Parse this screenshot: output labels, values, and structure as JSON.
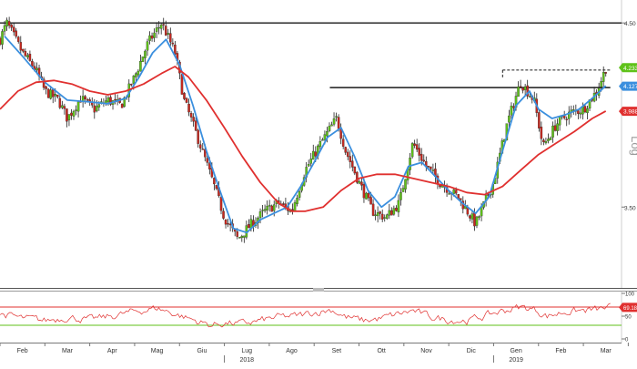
{
  "chart_data": {
    "type": "candlestick",
    "y_axis": {
      "scale": "log",
      "scale_label": "Log",
      "ticks": [
        4.5,
        3.5
      ],
      "tick_labels": [
        "4.50",
        "3.50"
      ],
      "ylim": [
        3.15,
        4.62
      ]
    },
    "x_axis": {
      "ticks": [
        "Feb",
        "Mar",
        "Apr",
        "Mag",
        "Giu",
        "Lug",
        "Ago",
        "Set",
        "Ott",
        "Nov",
        "Dic",
        "Gen",
        "Feb",
        "Mar"
      ],
      "year_labels": [
        "2018",
        "2019"
      ]
    },
    "x_range": [
      0,
      13.85
    ],
    "price_labels": [
      {
        "text": "4.2333",
        "value": 4.2333,
        "color": "#5fc21a"
      },
      {
        "text": "4.1276",
        "value": 4.1276,
        "color": "#3b8fde"
      },
      {
        "text": "3.9886",
        "value": 3.9886,
        "color": "#e0302f"
      }
    ],
    "levels": [
      {
        "value": 4.5,
        "from": 0.0,
        "to": 13.85,
        "style": "solid"
      },
      {
        "value": 4.12,
        "from": 7.35,
        "to": 13.6,
        "style": "solid"
      },
      {
        "value": 4.22,
        "from": 11.2,
        "to": 13.6,
        "style": "dashed"
      }
    ],
    "price_keypoints": [
      [
        0.0,
        4.4
      ],
      [
        0.15,
        4.5
      ],
      [
        0.5,
        4.32
      ],
      [
        0.8,
        4.22
      ],
      [
        1.0,
        4.1
      ],
      [
        1.3,
        4.05
      ],
      [
        1.5,
        3.95
      ],
      [
        1.8,
        4.06
      ],
      [
        2.1,
        4.0
      ],
      [
        2.4,
        4.05
      ],
      [
        2.7,
        4.02
      ],
      [
        3.0,
        4.18
      ],
      [
        3.3,
        4.38
      ],
      [
        3.6,
        4.5
      ],
      [
        3.9,
        4.32
      ],
      [
        4.1,
        4.05
      ],
      [
        4.4,
        3.85
      ],
      [
        4.7,
        3.65
      ],
      [
        5.0,
        3.45
      ],
      [
        5.3,
        3.35
      ],
      [
        5.6,
        3.42
      ],
      [
        5.9,
        3.48
      ],
      [
        6.2,
        3.52
      ],
      [
        6.5,
        3.48
      ],
      [
        6.8,
        3.68
      ],
      [
        7.1,
        3.8
      ],
      [
        7.5,
        3.95
      ],
      [
        7.7,
        3.78
      ],
      [
        8.0,
        3.62
      ],
      [
        8.3,
        3.48
      ],
      [
        8.6,
        3.45
      ],
      [
        8.9,
        3.52
      ],
      [
        9.2,
        3.82
      ],
      [
        9.5,
        3.7
      ],
      [
        9.8,
        3.62
      ],
      [
        10.2,
        3.55
      ],
      [
        10.6,
        3.42
      ],
      [
        11.0,
        3.62
      ],
      [
        11.3,
        3.92
      ],
      [
        11.6,
        4.15
      ],
      [
        11.9,
        4.05
      ],
      [
        12.1,
        3.8
      ],
      [
        12.4,
        3.92
      ],
      [
        12.7,
        3.98
      ],
      [
        13.0,
        4.0
      ],
      [
        13.3,
        4.1
      ],
      [
        13.5,
        4.23
      ]
    ],
    "series": [
      {
        "name": "MA fast",
        "color": "#3b8fde",
        "points": [
          [
            0.1,
            4.42
          ],
          [
            0.5,
            4.3
          ],
          [
            1.0,
            4.15
          ],
          [
            1.5,
            4.05
          ],
          [
            2.0,
            4.04
          ],
          [
            2.4,
            4.03
          ],
          [
            2.8,
            4.06
          ],
          [
            3.1,
            4.18
          ],
          [
            3.4,
            4.32
          ],
          [
            3.7,
            4.4
          ],
          [
            4.0,
            4.25
          ],
          [
            4.3,
            4.02
          ],
          [
            4.6,
            3.78
          ],
          [
            4.9,
            3.58
          ],
          [
            5.2,
            3.4
          ],
          [
            5.5,
            3.38
          ],
          [
            5.8,
            3.44
          ],
          [
            6.1,
            3.47
          ],
          [
            6.4,
            3.5
          ],
          [
            6.7,
            3.6
          ],
          [
            7.0,
            3.72
          ],
          [
            7.3,
            3.85
          ],
          [
            7.6,
            3.9
          ],
          [
            7.9,
            3.75
          ],
          [
            8.2,
            3.58
          ],
          [
            8.5,
            3.5
          ],
          [
            8.8,
            3.55
          ],
          [
            9.1,
            3.7
          ],
          [
            9.4,
            3.72
          ],
          [
            9.7,
            3.65
          ],
          [
            10.0,
            3.58
          ],
          [
            10.3,
            3.52
          ],
          [
            10.6,
            3.47
          ],
          [
            10.9,
            3.55
          ],
          [
            11.2,
            3.78
          ],
          [
            11.5,
            4.02
          ],
          [
            11.8,
            4.1
          ],
          [
            12.0,
            4.0
          ],
          [
            12.3,
            3.95
          ],
          [
            12.6,
            3.97
          ],
          [
            12.9,
            4.0
          ],
          [
            13.2,
            4.06
          ],
          [
            13.5,
            4.13
          ]
        ]
      },
      {
        "name": "MA slow",
        "color": "#e0302f",
        "points": [
          [
            0.0,
            4.0
          ],
          [
            0.4,
            4.1
          ],
          [
            0.8,
            4.15
          ],
          [
            1.2,
            4.16
          ],
          [
            1.6,
            4.14
          ],
          [
            2.0,
            4.1
          ],
          [
            2.4,
            4.08
          ],
          [
            2.8,
            4.1
          ],
          [
            3.2,
            4.14
          ],
          [
            3.6,
            4.2
          ],
          [
            3.9,
            4.24
          ],
          [
            4.2,
            4.18
          ],
          [
            4.6,
            4.05
          ],
          [
            5.0,
            3.9
          ],
          [
            5.4,
            3.75
          ],
          [
            5.8,
            3.62
          ],
          [
            6.2,
            3.52
          ],
          [
            6.5,
            3.48
          ],
          [
            6.8,
            3.48
          ],
          [
            7.2,
            3.5
          ],
          [
            7.6,
            3.58
          ],
          [
            8.0,
            3.64
          ],
          [
            8.4,
            3.66
          ],
          [
            8.8,
            3.66
          ],
          [
            9.2,
            3.64
          ],
          [
            9.6,
            3.62
          ],
          [
            10.0,
            3.6
          ],
          [
            10.4,
            3.57
          ],
          [
            10.8,
            3.56
          ],
          [
            11.2,
            3.6
          ],
          [
            11.6,
            3.68
          ],
          [
            12.0,
            3.76
          ],
          [
            12.4,
            3.82
          ],
          [
            12.8,
            3.88
          ],
          [
            13.2,
            3.95
          ],
          [
            13.5,
            3.99
          ]
        ]
      }
    ],
    "oscillator": {
      "ticks": [
        100,
        50,
        0
      ],
      "tick_labels": [
        "100",
        "50",
        "0"
      ],
      "value_label": "69.1889",
      "value": 69.1889,
      "line_color": "#e0302f",
      "thresholds": [
        {
          "value": 70,
          "color": "#e0302f"
        },
        {
          "value": 30,
          "color": "#5fc21a"
        }
      ],
      "keypoints": [
        [
          0.0,
          55
        ],
        [
          0.5,
          45
        ],
        [
          1.0,
          40
        ],
        [
          1.5,
          48
        ],
        [
          2.0,
          42
        ],
        [
          2.5,
          50
        ],
        [
          3.0,
          60
        ],
        [
          3.5,
          68
        ],
        [
          3.9,
          55
        ],
        [
          4.3,
          42
        ],
        [
          4.7,
          30
        ],
        [
          5.0,
          35
        ],
        [
          5.4,
          33
        ],
        [
          5.8,
          40
        ],
        [
          6.2,
          48
        ],
        [
          6.6,
          50
        ],
        [
          7.0,
          58
        ],
        [
          7.4,
          65
        ],
        [
          7.7,
          48
        ],
        [
          8.1,
          40
        ],
        [
          8.5,
          45
        ],
        [
          8.9,
          55
        ],
        [
          9.2,
          62
        ],
        [
          9.6,
          48
        ],
        [
          10.0,
          42
        ],
        [
          10.4,
          40
        ],
        [
          10.8,
          50
        ],
        [
          11.2,
          62
        ],
        [
          11.6,
          70
        ],
        [
          11.9,
          65
        ],
        [
          12.2,
          50
        ],
        [
          12.6,
          60
        ],
        [
          13.0,
          62
        ],
        [
          13.3,
          64
        ],
        [
          13.6,
          69
        ]
      ]
    }
  }
}
